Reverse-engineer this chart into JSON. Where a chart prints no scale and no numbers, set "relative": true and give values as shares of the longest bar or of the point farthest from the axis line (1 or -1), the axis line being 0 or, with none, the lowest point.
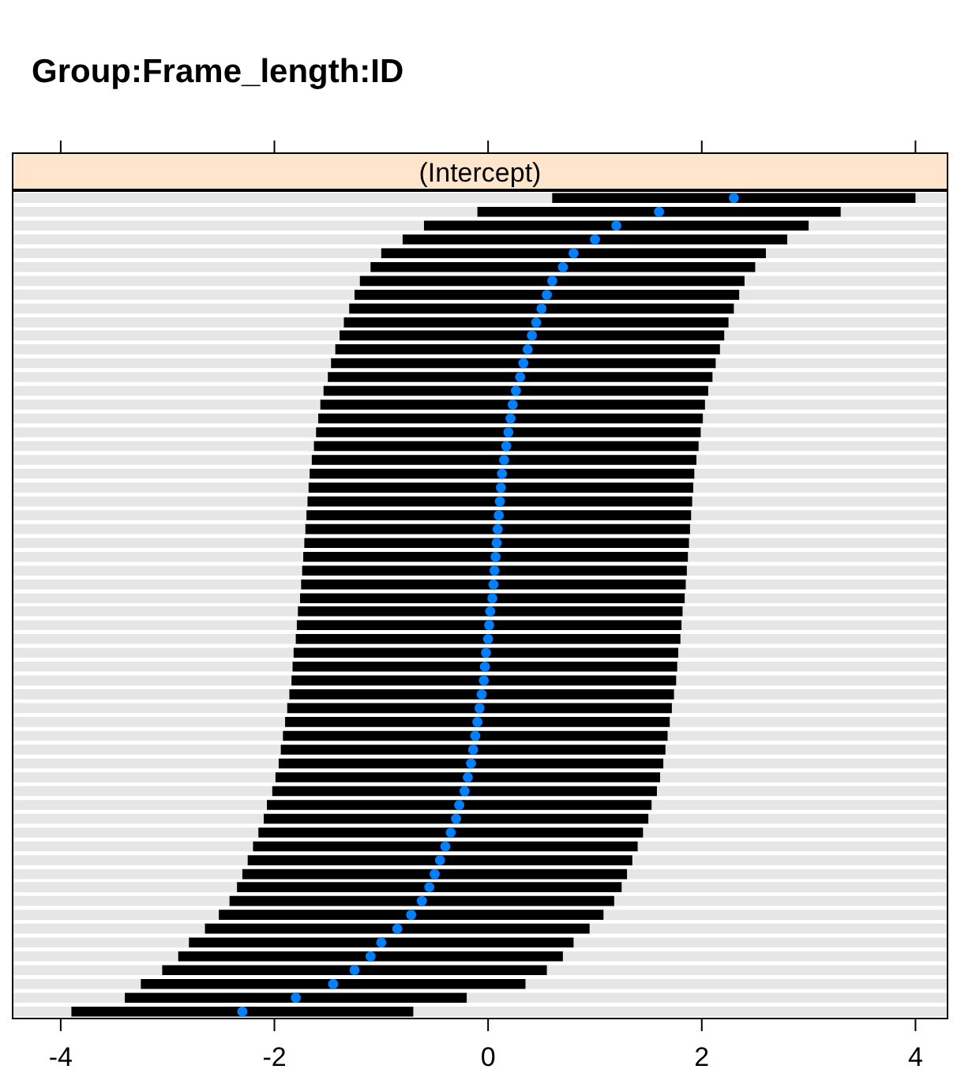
{
  "chart_data": {
    "type": "scatter",
    "relative": true,
    "title": "Group:Frame_length:ID",
    "subtitle": "(Intercept)",
    "color": "#0080ff",
    "marker": "circle",
    "grid": "y",
    "xlim": [
      -4.45,
      4.3
    ],
    "xticks": [
      -4,
      -2,
      0,
      2,
      4
    ],
    "x": [
      -2.3,
      -1.8,
      -1.45,
      -1.25,
      -1.1,
      -1.0,
      -0.85,
      -0.72,
      -0.62,
      -0.55,
      -0.5,
      -0.45,
      -0.4,
      -0.35,
      -0.3,
      -0.27,
      -0.22,
      -0.19,
      -0.16,
      -0.14,
      -0.12,
      -0.1,
      -0.08,
      -0.06,
      -0.04,
      -0.03,
      -0.02,
      0,
      0.01,
      0.02,
      0.04,
      0.05,
      0.06,
      0.07,
      0.08,
      0.09,
      0.1,
      0.11,
      0.12,
      0.13,
      0.15,
      0.17,
      0.19,
      0.21,
      0.23,
      0.26,
      0.3,
      0.33,
      0.37,
      0.41,
      0.45,
      0.5,
      0.55,
      0.6,
      0.7,
      0.8,
      1.0,
      1.2,
      1.6,
      2.3
    ],
    "values": [
      0,
      0.017,
      0.034,
      0.051,
      0.068,
      0.085,
      0.102,
      0.119,
      0.136,
      0.153,
      0.169,
      0.186,
      0.203,
      0.22,
      0.237,
      0.254,
      0.271,
      0.288,
      0.305,
      0.322,
      0.339,
      0.356,
      0.373,
      0.39,
      0.407,
      0.424,
      0.441,
      0.458,
      0.475,
      0.492,
      0.508,
      0.525,
      0.542,
      0.559,
      0.576,
      0.593,
      0.61,
      0.627,
      0.644,
      0.661,
      0.678,
      0.695,
      0.712,
      0.729,
      0.746,
      0.763,
      0.78,
      0.797,
      0.814,
      0.831,
      0.847,
      0.864,
      0.881,
      0.898,
      0.915,
      0.932,
      0.949,
      0.966,
      0.983,
      1
    ],
    "xerrors": [
      1.6,
      1.6,
      1.8,
      1.8,
      1.8,
      1.8,
      1.8,
      1.8,
      1.8,
      1.8,
      1.8,
      1.8,
      1.8,
      1.8,
      1.8,
      1.8,
      1.8,
      1.8,
      1.8,
      1.8,
      1.8,
      1.8,
      1.8,
      1.8,
      1.8,
      1.8,
      1.8,
      1.8,
      1.8,
      1.8,
      1.8,
      1.8,
      1.8,
      1.8,
      1.8,
      1.8,
      1.8,
      1.8,
      1.8,
      1.8,
      1.8,
      1.8,
      1.8,
      1.8,
      1.8,
      1.8,
      1.8,
      1.8,
      1.8,
      1.8,
      1.8,
      1.8,
      1.8,
      1.8,
      1.8,
      1.8,
      1.8,
      1.8,
      1.7,
      1.7
    ]
  }
}
